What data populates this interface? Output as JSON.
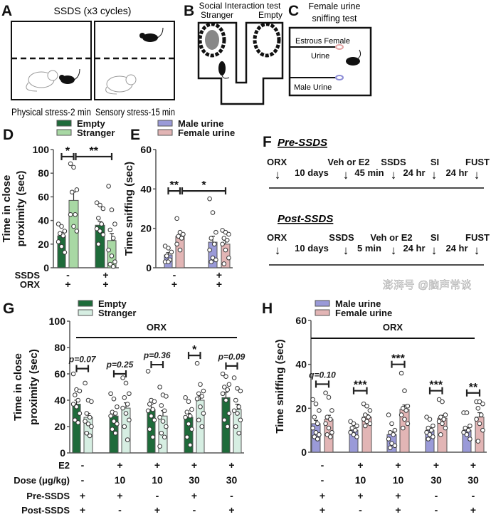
{
  "panels": {
    "A": {
      "letter": "A",
      "title": "SSDS (x3 cycles)",
      "caption_left": "Physical stress-2 min",
      "caption_right": "Sensory stress-15 min"
    },
    "B": {
      "letter": "B",
      "title": "Social Interaction test",
      "left_label": "Stranger",
      "right_label": "Empty"
    },
    "C": {
      "letter": "C",
      "title_line1": "Female urine",
      "title_line2": "sniffing test",
      "top_label_line1": "Estrous Female",
      "top_label_line2": "Urine",
      "bottom_label": "Male Urine",
      "female_color": "#e3a3a3",
      "male_color": "#8c8cd6"
    },
    "F": {
      "letter": "F",
      "timelines": [
        {
          "title": "Pre-SSDS",
          "events": [
            "ORX",
            "Veh or E2",
            "SSDS",
            "SI",
            "FUST"
          ],
          "intervals": [
            "10 days",
            "45 min",
            "24 hr",
            "24 hr"
          ]
        },
        {
          "title": "Post-SSDS",
          "events": [
            "ORX",
            "SSDS",
            "Veh or E2",
            "SI",
            "FUST"
          ],
          "intervals": [
            "10 days",
            "5 min",
            "24 hr",
            "24 hr"
          ]
        }
      ]
    }
  },
  "chart_data": [
    {
      "id": "D",
      "type": "bar",
      "letter": "D",
      "ylabel_line1": "Time in close",
      "ylabel_line2": "proximity (sec)",
      "ylim": [
        0,
        100
      ],
      "yticks": [
        0,
        20,
        40,
        60,
        80,
        100
      ],
      "series": [
        {
          "name": "Empty",
          "color": "#1e6b3a"
        },
        {
          "name": "Stranger",
          "color": "#a8d8a4"
        }
      ],
      "row_labels": [
        "SSDS",
        "ORX"
      ],
      "groups": [
        {
          "rows": [
            "-",
            "+"
          ],
          "bars": [
            {
              "mean": 27,
              "sem": 3,
              "points": [
                37,
                35,
                31,
                29,
                27,
                22,
                18,
                13
              ]
            },
            {
              "mean": 57,
              "sem": 7,
              "points": [
                88,
                85,
                66,
                64,
                45,
                45,
                35,
                31
              ]
            }
          ]
        },
        {
          "rows": [
            "+",
            "+"
          ],
          "bars": [
            {
              "mean": 36,
              "sem": 3,
              "points": [
                55,
                53,
                50,
                42,
                37,
                33,
                31,
                28,
                20
              ]
            },
            {
              "mean": 23,
              "sem": 6,
              "points": [
                69,
                49,
                37,
                32,
                25,
                15,
                10,
                5,
                3,
                1
              ]
            }
          ]
        }
      ],
      "significance": [
        {
          "from": [
            0,
            0
          ],
          "to": [
            0,
            1
          ],
          "level": 94,
          "label": "*"
        },
        {
          "from": [
            0,
            1
          ],
          "to": [
            1,
            1
          ],
          "level": 94,
          "label": "**"
        }
      ]
    },
    {
      "id": "E",
      "type": "bar",
      "letter": "E",
      "ylabel_line1": "Time sniffing (sec)",
      "ylim": [
        0,
        60
      ],
      "yticks": [
        0,
        20,
        40,
        60
      ],
      "series": [
        {
          "name": "Male urine",
          "color": "#9a9ad8"
        },
        {
          "name": "Female urine",
          "color": "#e2b5b5"
        }
      ],
      "groups": [
        {
          "rows": [
            "-",
            "+"
          ],
          "bars": [
            {
              "mean": 6.5,
              "sem": 1.2,
              "points": [
                11,
                10,
                8,
                6,
                4,
                3,
                3
              ]
            },
            {
              "mean": 16,
              "sem": 1.5,
              "points": [
                25,
                18,
                17,
                16,
                15,
                12,
                9
              ]
            }
          ]
        },
        {
          "rows": [
            "+",
            "+"
          ],
          "bars": [
            {
              "mean": 13,
              "sem": 3,
              "points": [
                35,
                28,
                18,
                15,
                12,
                9,
                5,
                4,
                3
              ]
            },
            {
              "mean": 12,
              "sem": 1.8,
              "points": [
                19,
                18,
                17,
                15,
                14,
                12,
                9,
                5,
                2
              ]
            }
          ]
        }
      ],
      "significance": [
        {
          "from": [
            0,
            0
          ],
          "to": [
            0,
            1
          ],
          "level": 39,
          "label": "**"
        },
        {
          "from": [
            0,
            1
          ],
          "to": [
            1,
            1
          ],
          "level": 39,
          "label": "*"
        }
      ]
    },
    {
      "id": "G",
      "type": "bar",
      "letter": "G",
      "ylabel_line1": "Time in close",
      "ylabel_line2": "proximity (sec)",
      "ylim": [
        0,
        100
      ],
      "yticks": [
        0,
        20,
        40,
        60,
        80,
        100
      ],
      "series": [
        {
          "name": "Empty",
          "color": "#1e6b3a"
        },
        {
          "name": "Stranger",
          "color": "#d6eee2"
        }
      ],
      "bracket_label": "ORX",
      "row_labels": [
        "E2",
        "Dose (μg/kg)",
        "Pre-SSDS",
        "Post-SSDS"
      ],
      "groups": [
        {
          "rows": [
            "-",
            "-",
            "+",
            "+"
          ],
          "bars": [
            {
              "mean": 37,
              "sem": 3,
              "points": [
                60,
                48,
                47,
                44,
                40,
                37,
                35,
                30,
                25,
                23
              ]
            },
            {
              "mean": 27,
              "sem": 3,
              "points": [
                53,
                40,
                39,
                30,
                27,
                24,
                22,
                20,
                15,
                13
              ]
            }
          ]
        },
        {
          "rows": [
            "+",
            "10",
            "+",
            "-"
          ],
          "bars": [
            {
              "mean": 28,
              "sem": 3,
              "points": [
                45,
                41,
                35,
                31,
                30,
                28,
                24,
                22,
                18,
                15
              ]
            },
            {
              "mean": 34,
              "sem": 4,
              "points": [
                57,
                53,
                45,
                42,
                37,
                34,
                30,
                25,
                20,
                10
              ]
            }
          ]
        },
        {
          "rows": [
            "+",
            "10",
            "-",
            "+"
          ],
          "bars": [
            {
              "mean": 33,
              "sem": 4,
              "points": [
                62,
                40,
                39,
                37,
                33,
                32,
                28,
                25,
                18,
                12
              ]
            },
            {
              "mean": 28,
              "sem": 4,
              "points": [
                50,
                44,
                43,
                36,
                32,
                27,
                24,
                20,
                15,
                12,
                5
              ]
            }
          ]
        },
        {
          "rows": [
            "+",
            "30",
            "+",
            "-"
          ],
          "bars": [
            {
              "mean": 27,
              "sem": 3,
              "points": [
                42,
                39,
                33,
                31,
                28,
                27,
                22,
                18,
                12,
                6
              ]
            },
            {
              "mean": 40,
              "sem": 3,
              "points": [
                68,
                52,
                47,
                45,
                43,
                41,
                35,
                30,
                25,
                20
              ]
            }
          ]
        },
        {
          "rows": [
            "+",
            "30",
            "-",
            "+"
          ],
          "bars": [
            {
              "mean": 42,
              "sem": 4,
              "points": [
                60,
                58,
                52,
                50,
                48,
                45,
                40,
                30,
                25,
                20
              ]
            },
            {
              "mean": 33,
              "sem": 4,
              "points": [
                57,
                49,
                47,
                40,
                35,
                32,
                30,
                25,
                20,
                15
              ]
            }
          ]
        }
      ],
      "significance": [
        {
          "group": 0,
          "level": 64,
          "label": "p=0.07"
        },
        {
          "group": 1,
          "level": 60,
          "label": "p=0.25"
        },
        {
          "group": 2,
          "level": 67,
          "label": "p=0.36"
        },
        {
          "group": 3,
          "level": 74,
          "label": "*"
        },
        {
          "group": 4,
          "level": 66,
          "label": "p=0.09"
        }
      ]
    },
    {
      "id": "H",
      "type": "bar",
      "letter": "H",
      "ylabel_line1": "Time sniffing (sec)",
      "ylim": [
        0,
        60
      ],
      "yticks": [
        0,
        20,
        40,
        60
      ],
      "series": [
        {
          "name": "Male urine",
          "color": "#9a9ad8"
        },
        {
          "name": "Female urine",
          "color": "#e2b5b5"
        }
      ],
      "bracket_label": "ORX",
      "groups": [
        {
          "rows": [
            "-",
            "-",
            "+",
            "+"
          ],
          "bars": [
            {
              "mean": 13,
              "sem": 1.5,
              "points": [
                24,
                22,
                19,
                16,
                13,
                11,
                9,
                8,
                7,
                6
              ]
            },
            {
              "mean": 15,
              "sem": 1.8,
              "points": [
                27,
                25,
                19,
                16,
                15,
                13,
                11,
                9,
                8,
                7
              ]
            }
          ]
        },
        {
          "rows": [
            "+",
            "10",
            "+",
            "-"
          ],
          "bars": [
            {
              "mean": 10,
              "sem": 0.8,
              "points": [
                14,
                13,
                12,
                11,
                10,
                9,
                8,
                7
              ]
            },
            {
              "mean": 16,
              "sem": 1.2,
              "points": [
                22,
                21,
                19,
                17,
                16,
                15,
                14,
                13,
                12
              ]
            }
          ]
        },
        {
          "rows": [
            "+",
            "10",
            "+",
            "+"
          ],
          "bars": [
            {
              "mean": 8,
              "sem": 1.5,
              "points": [
                17,
                13,
                10,
                9,
                8,
                6,
                4,
                3,
                2
              ]
            },
            {
              "mean": 19.5,
              "sem": 2,
              "points": [
                36,
                28,
                21,
                20,
                19,
                17,
                15,
                13,
                11
              ]
            }
          ]
        },
        {
          "rows": [
            "+",
            "30",
            "-",
            "-"
          ],
          "bars": [
            {
              "mean": 10,
              "sem": 1,
              "points": [
                16,
                15,
                12,
                11,
                10,
                9,
                8,
                7,
                6
              ]
            },
            {
              "mean": 15.5,
              "sem": 1.3,
              "points": [
                24,
                23,
                17,
                16,
                15,
                14,
                13,
                11,
                8
              ]
            }
          ]
        },
        {
          "rows": [
            "+",
            "30",
            "-",
            "+"
          ],
          "bars": [
            {
              "mean": 10,
              "sem": 1.2,
              "points": [
                18,
                18,
                12,
                11,
                10,
                9,
                8,
                6
              ]
            },
            {
              "mean": 16,
              "sem": 2,
              "points": [
                23,
                23,
                22,
                20,
                17,
                15,
                13,
                10,
                5
              ]
            }
          ]
        }
      ],
      "significance": [
        {
          "group": 0,
          "level": 31,
          "label": "q=0.10",
          "label_above": true
        },
        {
          "group": 1,
          "level": 28,
          "label": "***"
        },
        {
          "group": 2,
          "level": 40,
          "label": "***"
        },
        {
          "group": 3,
          "level": 28,
          "label": "***"
        },
        {
          "group": 4,
          "level": 27,
          "label": "**"
        }
      ]
    }
  ],
  "watermark": "澎湃号 @脑声常谈"
}
